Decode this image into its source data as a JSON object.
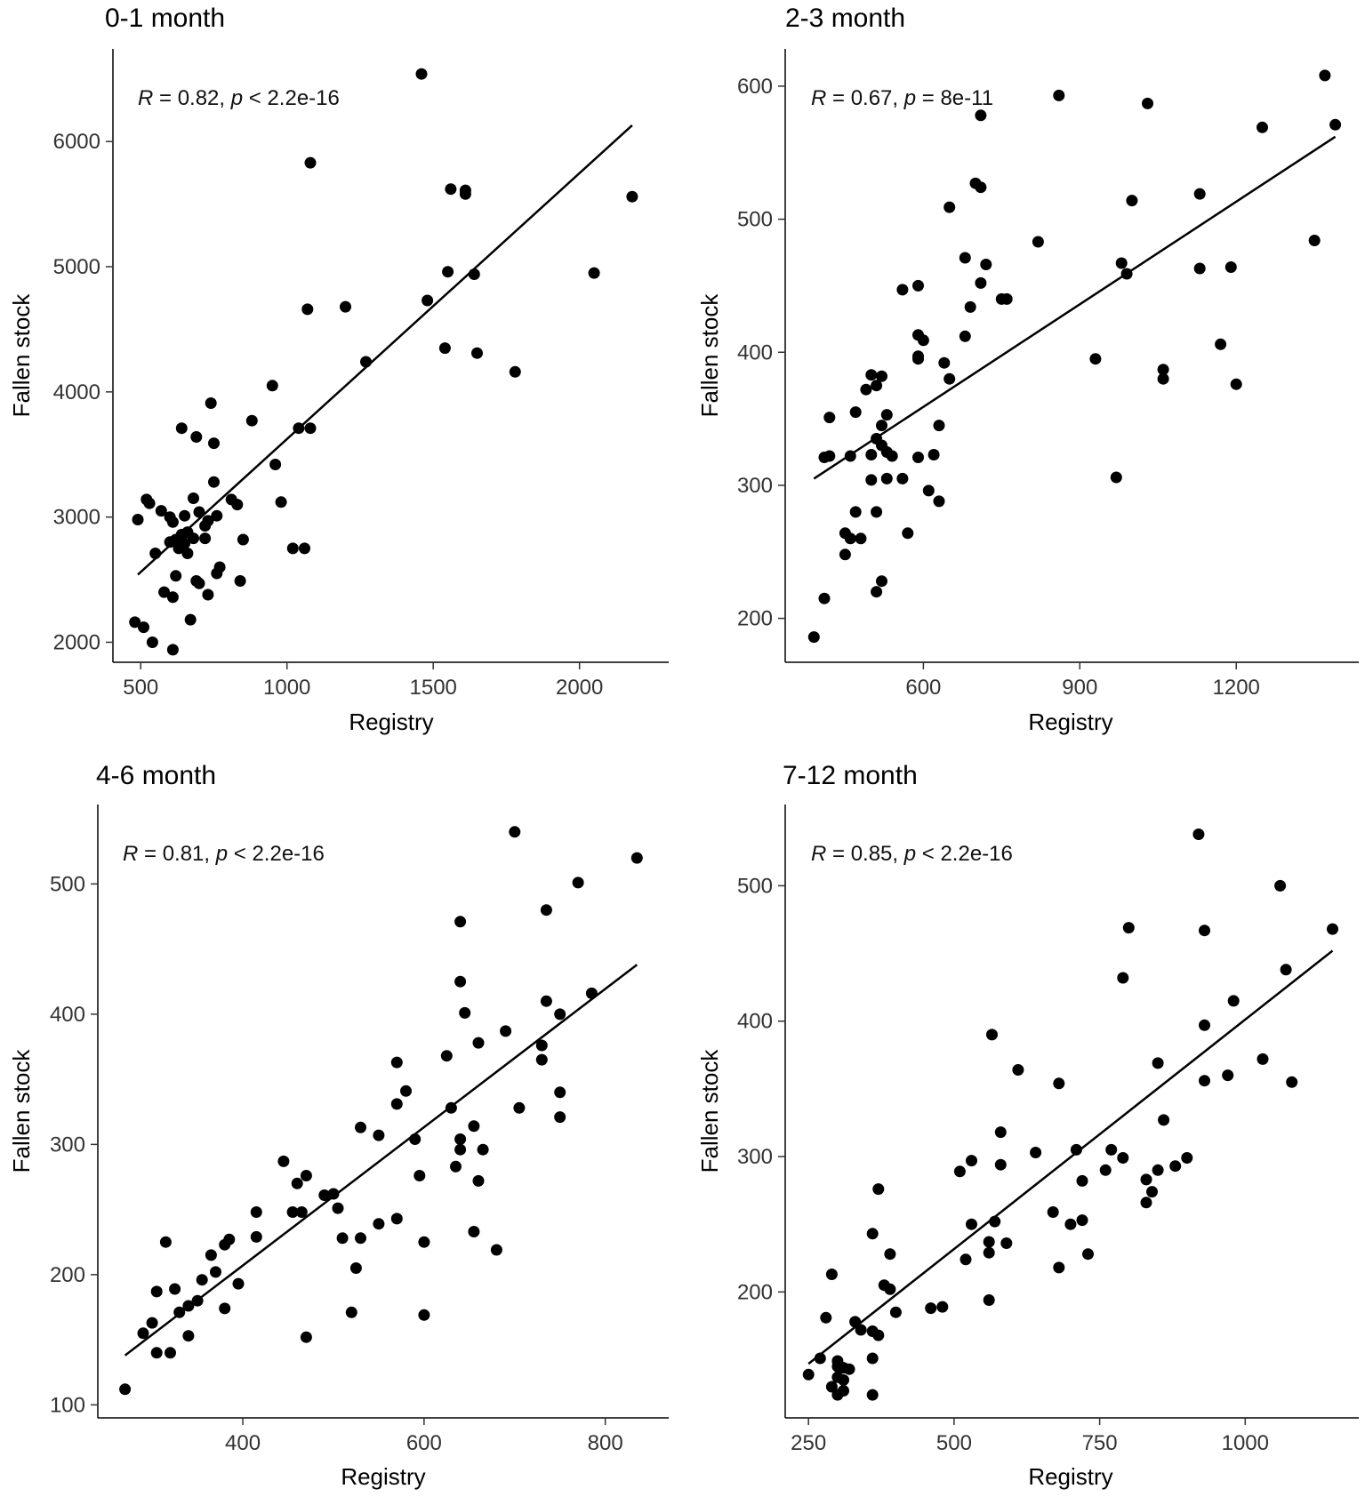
{
  "chart_data": [
    {
      "type": "scatter",
      "title": "0-1 month",
      "xlabel": "Registry",
      "ylabel": "Fallen stock",
      "annotation": {
        "r_symbol": "R",
        "r_text": " = 0.82, ",
        "p_symbol": "p",
        "p_text": " < 2.2e-16"
      },
      "xlim": [
        405,
        2305
      ],
      "ylim": [
        1840,
        6740
      ],
      "xticks": [
        500,
        1000,
        1500,
        2000
      ],
      "yticks": [
        2000,
        3000,
        4000,
        5000,
        6000
      ],
      "trendline": {
        "x": [
          490,
          2180
        ],
        "y": [
          2540,
          6130
        ]
      },
      "points": [
        [
          1460,
          6540
        ],
        [
          1080,
          5830
        ],
        [
          1560,
          5620
        ],
        [
          1610,
          5610
        ],
        [
          1610,
          5580
        ],
        [
          2180,
          5560
        ],
        [
          1550,
          4960
        ],
        [
          2050,
          4950
        ],
        [
          1640,
          4940
        ],
        [
          1480,
          4730
        ],
        [
          1200,
          4680
        ],
        [
          1070,
          4660
        ],
        [
          1540,
          4350
        ],
        [
          1650,
          4310
        ],
        [
          1270,
          4240
        ],
        [
          1780,
          4160
        ],
        [
          950,
          4050
        ],
        [
          740,
          3910
        ],
        [
          1080,
          3710
        ],
        [
          1040,
          3710
        ],
        [
          880,
          3770
        ],
        [
          640,
          3710
        ],
        [
          690,
          3640
        ],
        [
          750,
          3590
        ],
        [
          960,
          3420
        ],
        [
          750,
          3280
        ],
        [
          980,
          3120
        ],
        [
          810,
          3140
        ],
        [
          830,
          3100
        ],
        [
          520,
          3140
        ],
        [
          530,
          3110
        ],
        [
          490,
          2980
        ],
        [
          570,
          3050
        ],
        [
          600,
          3000
        ],
        [
          680,
          3150
        ],
        [
          650,
          3010
        ],
        [
          700,
          3040
        ],
        [
          730,
          2970
        ],
        [
          760,
          3010
        ],
        [
          720,
          2930
        ],
        [
          610,
          2960
        ],
        [
          640,
          2860
        ],
        [
          660,
          2880
        ],
        [
          620,
          2820
        ],
        [
          680,
          2830
        ],
        [
          650,
          2790
        ],
        [
          600,
          2800
        ],
        [
          630,
          2750
        ],
        [
          660,
          2710
        ],
        [
          720,
          2830
        ],
        [
          850,
          2820
        ],
        [
          550,
          2710
        ],
        [
          760,
          2550
        ],
        [
          770,
          2600
        ],
        [
          690,
          2490
        ],
        [
          700,
          2470
        ],
        [
          620,
          2530
        ],
        [
          840,
          2490
        ],
        [
          580,
          2400
        ],
        [
          610,
          2360
        ],
        [
          730,
          2380
        ],
        [
          670,
          2180
        ],
        [
          480,
          2160
        ],
        [
          510,
          2120
        ],
        [
          540,
          2000
        ],
        [
          610,
          1940
        ],
        [
          1020,
          2750
        ],
        [
          1060,
          2750
        ]
      ]
    },
    {
      "type": "scatter",
      "title": "2-3 month",
      "xlabel": "Registry",
      "ylabel": "Fallen stock",
      "annotation": {
        "r_symbol": "R",
        "r_text": " = 0.67, ",
        "p_symbol": "p",
        "p_text": " = 8e-11"
      },
      "xlim": [
        335,
        1435
      ],
      "ylim": [
        167,
        628
      ],
      "xticks": [
        600,
        900,
        1200
      ],
      "yticks": [
        200,
        300,
        400,
        500,
        600
      ],
      "trendline": {
        "x": [
          390,
          1390
        ],
        "y": [
          305,
          562
        ]
      },
      "points": [
        [
          1370,
          608
        ],
        [
          860,
          593
        ],
        [
          1030,
          587
        ],
        [
          710,
          578
        ],
        [
          1390,
          571
        ],
        [
          1250,
          569
        ],
        [
          1130,
          519
        ],
        [
          1000,
          514
        ],
        [
          650,
          509
        ],
        [
          700,
          527
        ],
        [
          710,
          524
        ],
        [
          820,
          483
        ],
        [
          1350,
          484
        ],
        [
          680,
          471
        ],
        [
          720,
          466
        ],
        [
          980,
          467
        ],
        [
          1130,
          463
        ],
        [
          1190,
          464
        ],
        [
          990,
          459
        ],
        [
          710,
          452
        ],
        [
          560,
          447
        ],
        [
          590,
          450
        ],
        [
          750,
          440
        ],
        [
          760,
          440
        ],
        [
          690,
          434
        ],
        [
          590,
          413
        ],
        [
          600,
          409
        ],
        [
          590,
          397
        ],
        [
          590,
          395
        ],
        [
          680,
          412
        ],
        [
          1170,
          406
        ],
        [
          930,
          395
        ],
        [
          640,
          392
        ],
        [
          1060,
          387
        ],
        [
          1060,
          380
        ],
        [
          1200,
          376
        ],
        [
          650,
          380
        ],
        [
          500,
          383
        ],
        [
          520,
          382
        ],
        [
          490,
          372
        ],
        [
          510,
          375
        ],
        [
          420,
          351
        ],
        [
          470,
          355
        ],
        [
          530,
          353
        ],
        [
          520,
          345
        ],
        [
          630,
          345
        ],
        [
          510,
          335
        ],
        [
          520,
          330
        ],
        [
          530,
          325
        ],
        [
          540,
          322
        ],
        [
          460,
          322
        ],
        [
          410,
          321
        ],
        [
          420,
          322
        ],
        [
          500,
          323
        ],
        [
          590,
          321
        ],
        [
          620,
          323
        ],
        [
          970,
          306
        ],
        [
          500,
          304
        ],
        [
          530,
          305
        ],
        [
          560,
          305
        ],
        [
          610,
          296
        ],
        [
          630,
          288
        ],
        [
          470,
          280
        ],
        [
          510,
          280
        ],
        [
          450,
          264
        ],
        [
          460,
          260
        ],
        [
          480,
          260
        ],
        [
          570,
          264
        ],
        [
          450,
          248
        ],
        [
          520,
          228
        ],
        [
          510,
          220
        ],
        [
          410,
          215
        ],
        [
          390,
          186
        ]
      ]
    },
    {
      "type": "scatter",
      "title": "4-6 month",
      "xlabel": "Registry",
      "ylabel": "Fallen stock",
      "annotation": {
        "r_symbol": "R",
        "r_text": " = 0.81, ",
        "p_symbol": "p",
        "p_text": " < 2.2e-16"
      },
      "xlim": [
        240,
        870
      ],
      "ylim": [
        90,
        561
      ],
      "xticks": [
        400,
        600,
        800
      ],
      "yticks": [
        100,
        200,
        300,
        400,
        500
      ],
      "trendline": {
        "x": [
          270,
          835
        ],
        "y": [
          138,
          438
        ]
      },
      "points": [
        [
          700,
          540
        ],
        [
          835,
          520
        ],
        [
          770,
          501
        ],
        [
          735,
          480
        ],
        [
          640,
          471
        ],
        [
          640,
          425
        ],
        [
          785,
          416
        ],
        [
          735,
          410
        ],
        [
          645,
          401
        ],
        [
          750,
          400
        ],
        [
          690,
          387
        ],
        [
          660,
          378
        ],
        [
          730,
          376
        ],
        [
          730,
          365
        ],
        [
          625,
          368
        ],
        [
          570,
          363
        ],
        [
          580,
          341
        ],
        [
          570,
          331
        ],
        [
          630,
          328
        ],
        [
          705,
          328
        ],
        [
          750,
          340
        ],
        [
          750,
          321
        ],
        [
          530,
          313
        ],
        [
          550,
          307
        ],
        [
          590,
          304
        ],
        [
          655,
          314
        ],
        [
          640,
          304
        ],
        [
          640,
          296
        ],
        [
          665,
          296
        ],
        [
          635,
          283
        ],
        [
          445,
          287
        ],
        [
          595,
          276
        ],
        [
          470,
          276
        ],
        [
          460,
          270
        ],
        [
          490,
          261
        ],
        [
          500,
          262
        ],
        [
          505,
          251
        ],
        [
          415,
          248
        ],
        [
          455,
          248
        ],
        [
          465,
          248
        ],
        [
          570,
          243
        ],
        [
          550,
          239
        ],
        [
          660,
          272
        ],
        [
          655,
          233
        ],
        [
          510,
          228
        ],
        [
          530,
          228
        ],
        [
          600,
          225
        ],
        [
          680,
          219
        ],
        [
          415,
          229
        ],
        [
          385,
          227
        ],
        [
          380,
          223
        ],
        [
          365,
          215
        ],
        [
          315,
          225
        ],
        [
          525,
          205
        ],
        [
          370,
          202
        ],
        [
          355,
          196
        ],
        [
          395,
          193
        ],
        [
          305,
          187
        ],
        [
          325,
          189
        ],
        [
          350,
          180
        ],
        [
          340,
          176
        ],
        [
          330,
          171
        ],
        [
          380,
          174
        ],
        [
          520,
          171
        ],
        [
          600,
          169
        ],
        [
          300,
          163
        ],
        [
          290,
          155
        ],
        [
          340,
          153
        ],
        [
          470,
          152
        ],
        [
          305,
          140
        ],
        [
          320,
          140
        ],
        [
          270,
          112
        ]
      ]
    },
    {
      "type": "scatter",
      "title": "7-12 month",
      "xlabel": "Registry",
      "ylabel": "Fallen stock",
      "annotation": {
        "r_symbol": "R",
        "r_text": " = 0.85, ",
        "p_symbol": "p",
        "p_text": " < 2.2e-16"
      },
      "xlim": [
        210,
        1195
      ],
      "ylim": [
        107,
        560
      ],
      "xticks": [
        250,
        500,
        750,
        1000
      ],
      "yticks": [
        200,
        300,
        400,
        500
      ],
      "trendline": {
        "x": [
          250,
          1150
        ],
        "y": [
          147,
          452
        ]
      },
      "points": [
        [
          920,
          538
        ],
        [
          1060,
          500
        ],
        [
          800,
          469
        ],
        [
          930,
          467
        ],
        [
          1150,
          468
        ],
        [
          1070,
          438
        ],
        [
          790,
          432
        ],
        [
          980,
          415
        ],
        [
          930,
          397
        ],
        [
          565,
          390
        ],
        [
          1030,
          372
        ],
        [
          850,
          369
        ],
        [
          610,
          364
        ],
        [
          680,
          354
        ],
        [
          930,
          356
        ],
        [
          970,
          360
        ],
        [
          1080,
          355
        ],
        [
          860,
          327
        ],
        [
          580,
          318
        ],
        [
          710,
          305
        ],
        [
          770,
          305
        ],
        [
          640,
          303
        ],
        [
          900,
          299
        ],
        [
          790,
          299
        ],
        [
          530,
          297
        ],
        [
          580,
          294
        ],
        [
          510,
          289
        ],
        [
          760,
          290
        ],
        [
          850,
          290
        ],
        [
          880,
          293
        ],
        [
          720,
          282
        ],
        [
          830,
          283
        ],
        [
          840,
          274
        ],
        [
          830,
          266
        ],
        [
          370,
          276
        ],
        [
          670,
          259
        ],
        [
          720,
          253
        ],
        [
          530,
          250
        ],
        [
          570,
          252
        ],
        [
          700,
          250
        ],
        [
          360,
          243
        ],
        [
          560,
          237
        ],
        [
          590,
          236
        ],
        [
          390,
          228
        ],
        [
          560,
          229
        ],
        [
          730,
          228
        ],
        [
          520,
          224
        ],
        [
          680,
          218
        ],
        [
          290,
          213
        ],
        [
          380,
          205
        ],
        [
          390,
          202
        ],
        [
          560,
          194
        ],
        [
          480,
          189
        ],
        [
          460,
          188
        ],
        [
          400,
          185
        ],
        [
          280,
          181
        ],
        [
          330,
          178
        ],
        [
          340,
          172
        ],
        [
          360,
          171
        ],
        [
          370,
          168
        ],
        [
          250,
          139
        ],
        [
          270,
          151
        ],
        [
          300,
          149
        ],
        [
          300,
          145
        ],
        [
          310,
          144
        ],
        [
          320,
          143
        ],
        [
          300,
          137
        ],
        [
          310,
          135
        ],
        [
          360,
          151
        ],
        [
          290,
          130
        ],
        [
          310,
          127
        ],
        [
          300,
          124
        ],
        [
          360,
          124
        ]
      ]
    }
  ]
}
